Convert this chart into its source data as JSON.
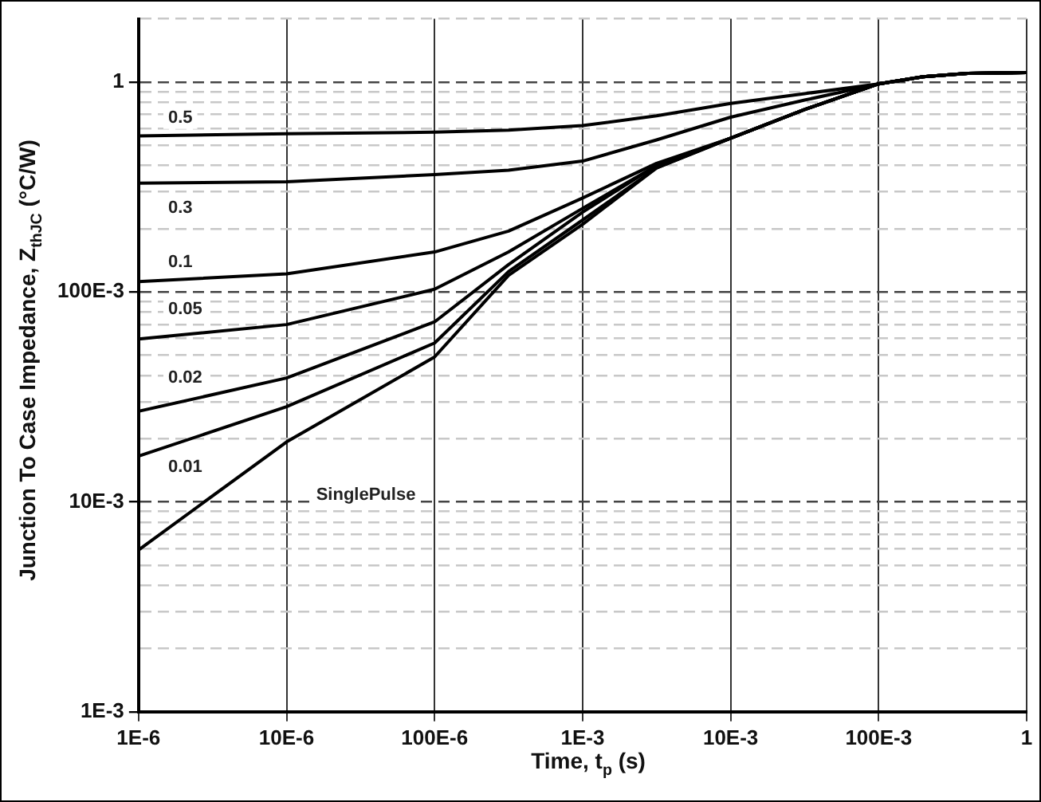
{
  "chart_data": {
    "type": "line",
    "xlabel": "Time, t$_{p}$ (s)",
    "ylabel": "Junction To Case Impedance, Z$_{thJC}$ (°C/W)",
    "log": "xy",
    "grid": true,
    "legend": false,
    "marker": "none",
    "line_style": "solid",
    "x": [
      1e-06,
      1e-05,
      0.0001,
      0.000316,
      0.001,
      0.00316,
      0.01,
      0.0316,
      0.1,
      0.2,
      0.4,
      1
    ],
    "xlim": [
      1e-06,
      1
    ],
    "xticks": [
      {
        "value": 1e-06,
        "label": "1E-6"
      },
      {
        "value": 1e-05,
        "label": "10E-6"
      },
      {
        "value": 0.0001,
        "label": "100E-6"
      },
      {
        "value": 0.001,
        "label": "1E-3"
      },
      {
        "value": 0.01,
        "label": "10E-3"
      },
      {
        "value": 0.1,
        "label": "100E-3"
      },
      1
    ],
    "ylim": [
      0.001,
      2
    ],
    "yticks": [
      {
        "value": 0.001,
        "label": "1E-3"
      },
      {
        "value": 0.002,
        "label": null
      },
      {
        "value": 0.003,
        "label": null
      },
      {
        "value": 0.004,
        "label": null
      },
      {
        "value": 0.005,
        "label": null
      },
      {
        "value": 0.006,
        "label": null
      },
      {
        "value": 0.007,
        "label": null
      },
      {
        "value": 0.008,
        "label": null
      },
      {
        "value": 0.009,
        "label": null
      },
      {
        "value": 0.01,
        "label": "10E-3"
      },
      {
        "value": 0.02,
        "label": null
      },
      {
        "value": 0.03,
        "label": null
      },
      {
        "value": 0.04,
        "label": null
      },
      {
        "value": 0.05,
        "label": null
      },
      {
        "value": 0.06,
        "label": null
      },
      {
        "value": 0.07,
        "label": null
      },
      {
        "value": 0.08,
        "label": null
      },
      {
        "value": 0.09,
        "label": null
      },
      {
        "value": 0.1,
        "label": "100E-3"
      },
      {
        "value": 0.2,
        "label": null
      },
      {
        "value": 0.3,
        "label": null
      },
      {
        "value": 0.4,
        "label": null
      },
      {
        "value": 0.5,
        "label": null
      },
      {
        "value": 0.6,
        "label": null
      },
      {
        "value": 0.7,
        "label": null
      },
      {
        "value": 0.8,
        "label": null
      },
      {
        "value": 0.9,
        "label": null
      },
      1,
      {
        "value": 2,
        "label": null
      }
    ],
    "series": [
      {
        "name": "0.5",
        "color": "#000000",
        "values": [
          0.554,
          0.567,
          0.577,
          0.59,
          0.62,
          0.69,
          0.79,
          0.88,
          0.98,
          1.06,
          1.1,
          1.11
        ]
      },
      {
        "name": "0.3",
        "color": "#000000",
        "values": [
          0.33,
          0.335,
          0.362,
          0.38,
          0.42,
          0.53,
          0.68,
          0.82,
          0.98,
          1.06,
          1.1,
          1.11
        ]
      },
      {
        "name": "0.1",
        "color": "#000000",
        "values": [
          0.112,
          0.122,
          0.155,
          0.195,
          0.28,
          0.41,
          0.54,
          0.74,
          0.98,
          1.06,
          1.1,
          1.11
        ]
      },
      {
        "name": "0.05",
        "color": "#000000",
        "values": [
          0.0596,
          0.0699,
          0.103,
          0.155,
          0.25,
          0.4,
          0.54,
          0.74,
          0.98,
          1.06,
          1.1,
          1.11
        ]
      },
      {
        "name": "0.02",
        "color": "#000000",
        "values": [
          0.027,
          0.0389,
          0.072,
          0.135,
          0.24,
          0.4,
          0.54,
          0.74,
          0.98,
          1.06,
          1.1,
          1.11
        ]
      },
      {
        "name": "0.01",
        "color": "#000000",
        "values": [
          0.0165,
          0.0284,
          0.0571,
          0.125,
          0.22,
          0.39,
          0.54,
          0.74,
          0.98,
          1.06,
          1.1,
          1.11
        ]
      },
      {
        "name": "SinglePulse",
        "color": "#000000",
        "values": [
          0.0059,
          0.0193,
          0.049,
          0.12,
          0.21,
          0.39,
          0.54,
          0.74,
          0.98,
          1.06,
          1.1,
          1.11
        ]
      }
    ]
  }
}
